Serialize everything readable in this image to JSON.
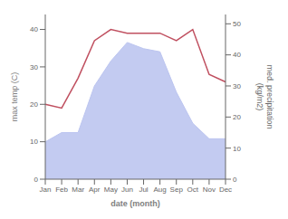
{
  "chart_data": {
    "type": "line",
    "xlabel": "date (month)",
    "ylabel": "max temp (C)",
    "y2label": "med. precipitation\n(kg/m2)",
    "categories": [
      "Jan",
      "Feb",
      "Mar",
      "Apr",
      "May",
      "Jun",
      "Jul",
      "Aug",
      "Sep",
      "Oct",
      "Nov",
      "Dec"
    ],
    "series": [
      {
        "type": "area",
        "axis": "y2",
        "color": "#bcc5f0",
        "values": [
          12,
          15,
          15,
          30,
          38,
          44,
          42,
          41,
          28,
          18,
          13,
          13
        ]
      },
      {
        "type": "line",
        "color": "#c05060",
        "values": [
          20,
          19,
          27,
          37,
          40,
          39,
          39,
          39,
          37,
          40,
          28,
          26
        ]
      }
    ],
    "ylim": [
      0,
      44
    ],
    "yticks": [
      0,
      10,
      20,
      30,
      40
    ],
    "y2lim": [
      0,
      53
    ],
    "y2ticks": [
      0,
      10,
      20,
      30,
      40,
      50
    ],
    "grid": false
  }
}
